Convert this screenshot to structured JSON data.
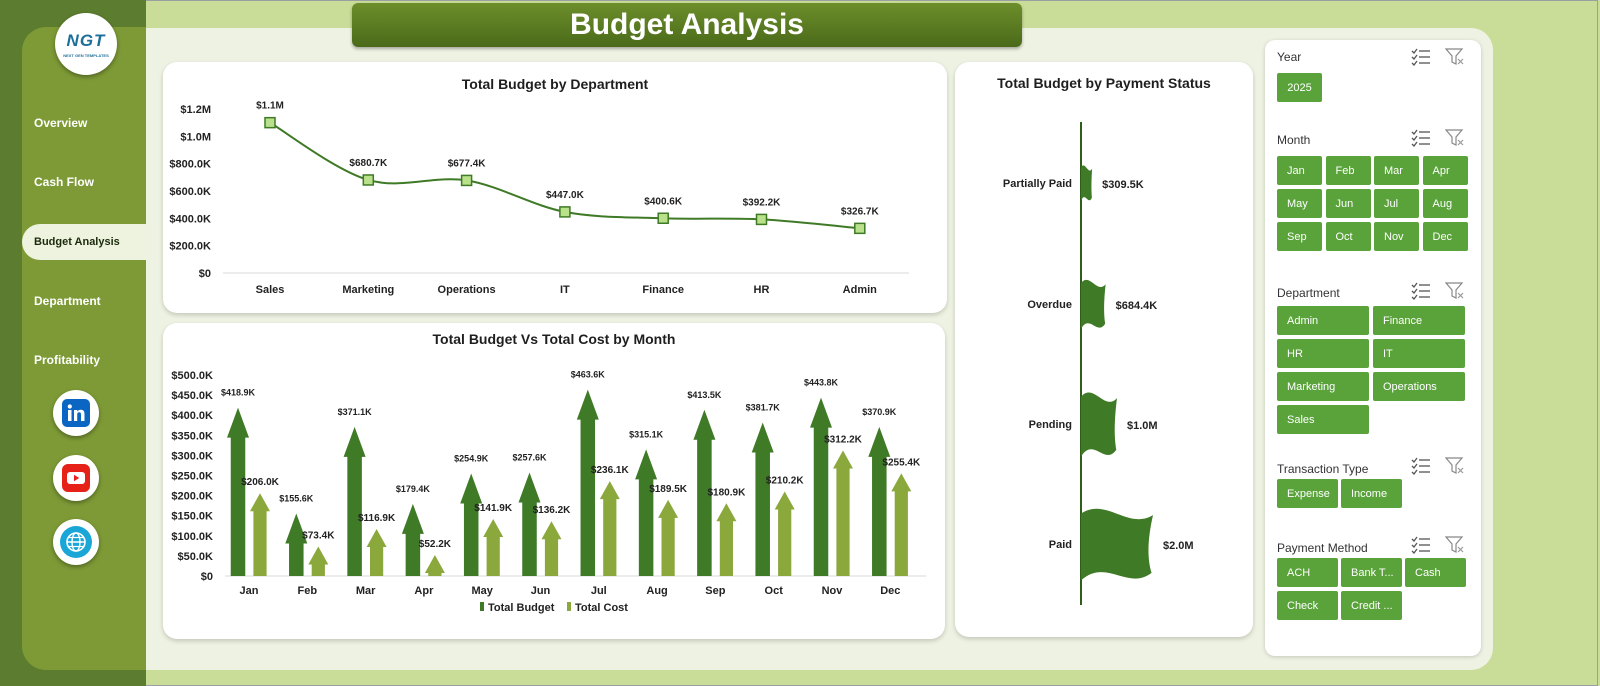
{
  "header": {
    "title": "Budget Analysis"
  },
  "logo": {
    "mark": "NGT",
    "subtitle": "NEXT GEN TEMPLATES"
  },
  "sidebar": {
    "items": [
      {
        "label": "Overview"
      },
      {
        "label": "Cash Flow"
      },
      {
        "label": "Budget Analysis"
      },
      {
        "label": "Department"
      },
      {
        "label": "Profitability"
      }
    ],
    "active": "Budget Analysis",
    "socials": [
      {
        "icon": "linkedin-icon"
      },
      {
        "icon": "youtube-icon"
      },
      {
        "icon": "globe-icon"
      }
    ]
  },
  "colors": {
    "budget": "#3f7a26",
    "cost": "#8aa83c",
    "chip": "#5aa33a",
    "line": "#3f7a26"
  },
  "chart_data": [
    {
      "type": "line",
      "title": "Total Budget by Department",
      "categories": [
        "Sales",
        "Marketing",
        "Operations",
        "IT",
        "Finance",
        "HR",
        "Admin"
      ],
      "values": [
        1100000,
        680700,
        677400,
        447000,
        400600,
        392200,
        326700
      ],
      "data_labels": [
        "$1.1M",
        "$680.7K",
        "$677.4K",
        "$447.0K",
        "$400.6K",
        "$392.2K",
        "$326.7K"
      ],
      "y_ticks": [
        "$0",
        "$200.0K",
        "$400.0K",
        "$600.0K",
        "$800.0K",
        "$1.0M",
        "$1.2M"
      ],
      "ylim": [
        0,
        1200000
      ],
      "grid": false
    },
    {
      "type": "bar",
      "title": "Total Budget Vs Total Cost by Month",
      "categories": [
        "Jan",
        "Feb",
        "Mar",
        "Apr",
        "May",
        "Jun",
        "Jul",
        "Aug",
        "Sep",
        "Oct",
        "Nov",
        "Dec"
      ],
      "series": [
        {
          "name": "Total Budget",
          "values": [
            418900,
            155600,
            371100,
            179400,
            254900,
            257600,
            463600,
            315100,
            413500,
            381700,
            443800,
            370900
          ],
          "labels": [
            "$418.9K",
            "$155.6K",
            "$371.1K",
            "$179.4K",
            "$254.9K",
            "$257.6K",
            "$463.6K",
            "$315.1K",
            "$413.5K",
            "$381.7K",
            "$443.8K",
            "$370.9K"
          ]
        },
        {
          "name": "Total Cost",
          "values": [
            206000,
            73400,
            116900,
            52200,
            141900,
            136200,
            236100,
            189500,
            180900,
            210200,
            312200,
            255400
          ],
          "labels": [
            "$206.0K",
            "$73.4K",
            "$116.9K",
            "$52.2K",
            "$141.9K",
            "$136.2K",
            "$236.1K",
            "$189.5K",
            "$180.9K",
            "$210.2K",
            "$312.2K",
            "$255.4K"
          ]
        }
      ],
      "y_ticks": [
        "$0",
        "$50.0K",
        "$100.0K",
        "$150.0K",
        "$200.0K",
        "$250.0K",
        "$300.0K",
        "$350.0K",
        "$400.0K",
        "$450.0K",
        "$500.0K"
      ],
      "ylim": [
        0,
        500000
      ],
      "legend": "bottom",
      "grid": false
    },
    {
      "type": "bar",
      "orientation": "horizontal",
      "title": "Total Budget by Payment Status",
      "categories": [
        "Partially Paid",
        "Overdue",
        "Pending",
        "Paid"
      ],
      "values": [
        309500,
        684400,
        1000000,
        2000000
      ],
      "data_labels": [
        "$309.5K",
        "$684.4K",
        "$1.0M",
        "$2.0M"
      ],
      "grid": false
    }
  ],
  "filters": {
    "year": {
      "title": "Year",
      "options": [
        "2025"
      ]
    },
    "month": {
      "title": "Month",
      "options": [
        "Jan",
        "Feb",
        "Mar",
        "Apr",
        "May",
        "Jun",
        "Jul",
        "Aug",
        "Sep",
        "Oct",
        "Nov",
        "Dec"
      ]
    },
    "department": {
      "title": "Department",
      "options": [
        "Admin",
        "Finance",
        "HR",
        "IT",
        "Marketing",
        "Operations",
        "Sales"
      ]
    },
    "transaction_type": {
      "title": "Transaction Type",
      "options": [
        "Expense",
        "Income"
      ]
    },
    "payment_method": {
      "title": "Payment Method",
      "options": [
        "ACH",
        "Bank T...",
        "Cash",
        "Check",
        "Credit ..."
      ]
    }
  }
}
